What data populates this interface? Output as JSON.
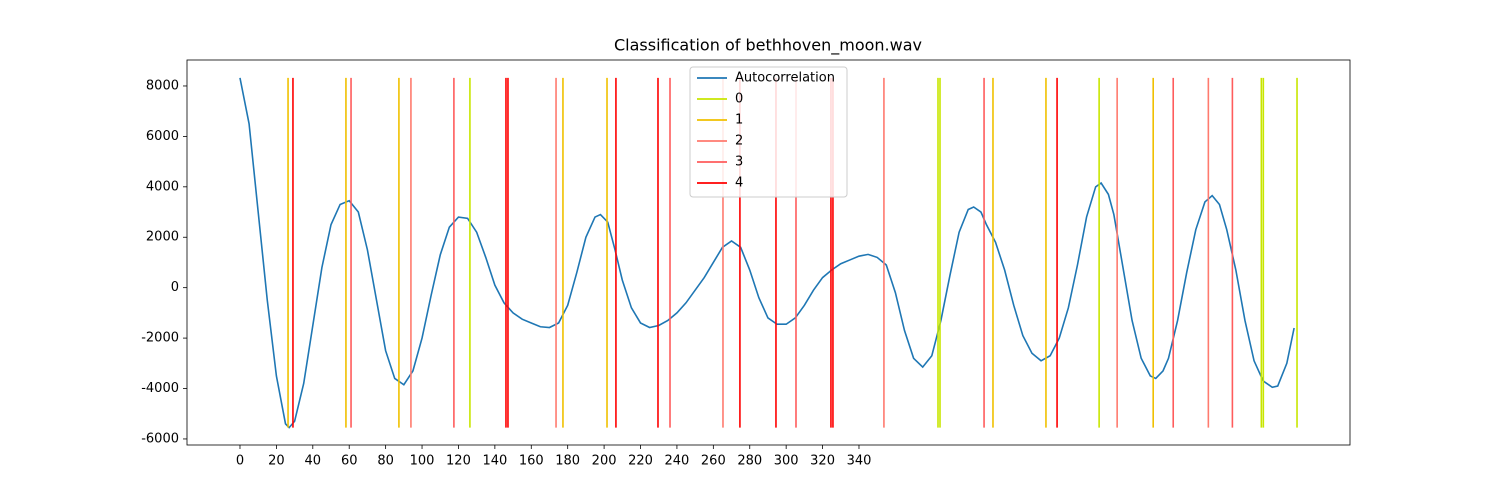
{
  "chart_data": {
    "type": "line",
    "title": "Classification of bethhoven_moon.wav",
    "x": [
      0,
      5,
      10,
      15,
      20,
      25,
      27,
      30,
      35,
      40,
      45,
      50,
      55,
      60,
      65,
      70,
      75,
      80,
      85,
      90,
      95,
      100,
      105,
      110,
      115,
      120,
      125,
      130,
      135,
      140,
      145,
      150,
      155,
      160,
      165,
      170,
      175,
      180,
      185,
      190,
      195,
      198,
      202,
      206,
      210,
      215,
      220,
      225,
      230,
      235,
      240,
      245,
      250,
      255,
      260,
      265,
      270,
      275,
      280,
      285,
      290,
      295,
      300,
      305,
      310,
      315,
      320,
      325,
      330,
      335,
      340,
      345,
      350,
      355,
      360,
      365,
      370,
      375,
      380,
      385,
      390,
      395,
      400,
      403,
      407,
      410,
      415,
      420,
      425,
      430,
      435,
      440,
      445,
      450,
      455,
      460,
      465,
      470,
      473,
      477,
      480,
      485,
      490,
      495,
      500,
      503,
      507,
      510,
      515,
      520,
      525,
      530,
      534,
      538,
      542,
      547,
      552,
      557,
      562,
      567,
      570,
      575,
      579
    ],
    "series": [
      {
        "name": "Autocorrelation",
        "color": "#1f77b4",
        "values": [
          8320,
          6500,
          3000,
          -500,
          -3500,
          -5400,
          -5550,
          -5300,
          -3800,
          -1500,
          800,
          2500,
          3300,
          3450,
          3000,
          1500,
          -500,
          -2500,
          -3600,
          -3850,
          -3300,
          -2000,
          -300,
          1300,
          2400,
          2800,
          2750,
          2200,
          1200,
          100,
          -600,
          -1000,
          -1250,
          -1400,
          -1550,
          -1580,
          -1400,
          -700,
          600,
          2000,
          2800,
          2900,
          2600,
          1500,
          300,
          -800,
          -1400,
          -1580,
          -1500,
          -1300,
          -1000,
          -600,
          -100,
          400,
          1000,
          1600,
          1850,
          1600,
          700,
          -400,
          -1200,
          -1450,
          -1450,
          -1200,
          -700,
          -100,
          400,
          700,
          950,
          1100,
          1250,
          1320,
          1200,
          900,
          -200,
          -1700,
          -2800,
          -3150,
          -2700,
          -1300,
          500,
          2200,
          3100,
          3200,
          3000,
          2500,
          1800,
          700,
          -700,
          -1900,
          -2600,
          -2900,
          -2700,
          -2000,
          -800,
          900,
          2800,
          4000,
          4150,
          3700,
          2900,
          800,
          -1300,
          -2800,
          -3500,
          -3600,
          -3300,
          -2800,
          -1300,
          600,
          2300,
          3400,
          3650,
          3300,
          2300,
          700,
          -1300,
          -2900,
          -3700,
          -3950,
          -3900,
          -3000,
          -1600
        ]
      }
    ],
    "vlines": [
      {
        "name": "0",
        "color": "#c8e600",
        "x": [
          126.3,
          383.4,
          384.5,
          471.9,
          561,
          562.1,
          580.6
        ]
      },
      {
        "name": "1",
        "color": "#f0c000",
        "x": [
          26.4,
          58.2,
          87.3,
          177.4,
          201.6,
          413.6,
          442.7,
          501.6
        ]
      },
      {
        "name": "2",
        "color": "#ff7a6e",
        "x": [
          93.9,
          173.6,
          265.3,
          353.7,
          481.8,
          531.9
        ]
      },
      {
        "name": "3",
        "color": "#ff5c5c",
        "x": [
          61,
          117.5,
          236.2,
          305.4,
          408.7,
          512.6,
          545.1
        ]
      },
      {
        "name": "4",
        "color": "#ff0000",
        "x": [
          29.1,
          146.1,
          147.2,
          206.5,
          229.6,
          274.6,
          294.4,
          324.6,
          325.7,
          448.8
        ]
      }
    ],
    "vline_range": [
      -5550,
      8320
    ],
    "xlim": [
      -29.1,
      609.7
    ],
    "ylim": [
      -6240,
      9030
    ],
    "xticks": [
      0,
      20,
      40,
      60,
      80,
      100,
      120,
      140,
      160,
      180,
      200,
      220,
      240,
      260,
      280,
      300,
      320,
      340
    ],
    "yticks": [
      -6000,
      -4000,
      -2000,
      0,
      2000,
      4000,
      6000,
      8000
    ],
    "legend": "upper center"
  }
}
